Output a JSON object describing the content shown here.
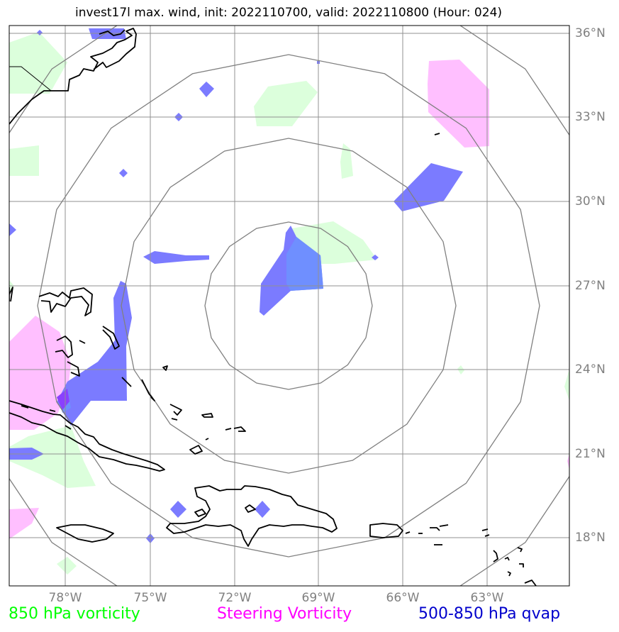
{
  "title": "invest17l max. wind, init: 2022110700, valid: 2022110800 (Hour: 024)",
  "map": {
    "lat_labels": [
      "36°N",
      "33°N",
      "30°N",
      "27°N",
      "24°N",
      "21°N",
      "18°N"
    ],
    "lon_labels": [
      "78°W",
      "75°W",
      "72°W",
      "69°W",
      "66°W",
      "63°W"
    ],
    "range_ring_count": 4,
    "gridlines": true
  },
  "legend": [
    {
      "label": "850 hPa vorticity",
      "color": "#00ff00"
    },
    {
      "label": "Steering Vorticity",
      "color": "#ff00ff"
    },
    {
      "label": "500-850 hPa qvap",
      "color": "#0000cc"
    }
  ],
  "colors": {
    "vorticity_fill": "#dcffdc",
    "steering_fill": "#ffbfff",
    "qvap_fill": "#7b7bff",
    "grid": "#909090",
    "rings": "#808080",
    "coast": "#000000"
  }
}
